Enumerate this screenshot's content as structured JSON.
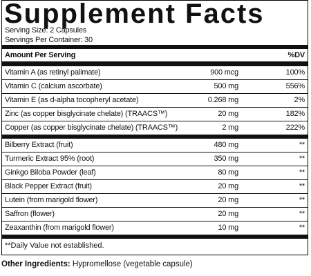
{
  "title": "Supplement Facts",
  "serving_size": "Serving Size: 2 Capsules",
  "servings_per_container": "Servings Per Container: 30",
  "header": {
    "amount_label": "Amount Per Serving",
    "dv_label": "%DV"
  },
  "sections": [
    {
      "rows": [
        {
          "name": "Vitamin A (as retinyl palimate)",
          "amount": "900 mcg",
          "dv": "100%"
        },
        {
          "name": "Vitamin C (calcium ascorbate)",
          "amount": "500 mg",
          "dv": "556%"
        },
        {
          "name": "Vitamin E (as d-alpha tocopheryl acetate)",
          "amount": "0.268 mg",
          "dv": "2%"
        },
        {
          "name": "Zinc (as copper bisglycinate chelate) (TRAACS™)",
          "amount": "20 mg",
          "dv": "182%"
        },
        {
          "name": "Copper (as copper bisglycinate chelate) (TRAACS™)",
          "amount": "2 mg",
          "dv": "222%"
        }
      ]
    },
    {
      "rows": [
        {
          "name": "Bilberry Extract (fruit)",
          "amount": "480 mg",
          "dv": "**"
        },
        {
          "name": "Turmeric Extract 95% (root)",
          "amount": "350 mg",
          "dv": "**"
        },
        {
          "name": "Ginkgo Biloba Powder (leaf)",
          "amount": "80 mg",
          "dv": "**"
        },
        {
          "name": "Black Pepper Extract (fruit)",
          "amount": "20 mg",
          "dv": "**"
        },
        {
          "name": "Lutein (from marigold flower)",
          "amount": "20 mg",
          "dv": "**"
        },
        {
          "name": "Saffron (flower)",
          "amount": "20 mg",
          "dv": "**"
        },
        {
          "name": "Zeaxanthin (from marigold flower)",
          "amount": "10 mg",
          "dv": "**"
        }
      ]
    }
  ],
  "footnote": "**Daily Value not established.",
  "other_ingredients": {
    "label": "Other Ingredients:",
    "text": "Hypromellose (vegetable capsule)"
  }
}
